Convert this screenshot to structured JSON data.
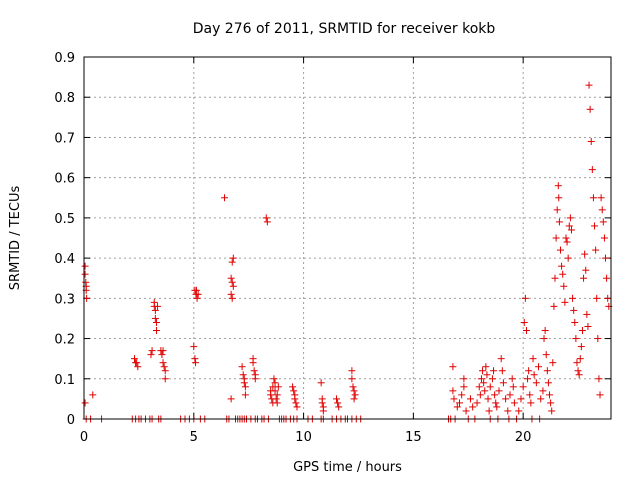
{
  "chart_data": {
    "type": "scatter",
    "title": "Day 276 of 2011, SRMTID for receiver kokb",
    "xlabel": "GPS time / hours",
    "ylabel": "SRMTID / TECUs",
    "xlim": [
      0,
      24
    ],
    "ylim": [
      0,
      0.9
    ],
    "xticks": [
      0,
      5,
      10,
      15,
      20
    ],
    "xtick_labels": [
      "0",
      "5",
      "10",
      "15",
      "20"
    ],
    "yticks": [
      0,
      0.1,
      0.2,
      0.3,
      0.4,
      0.5,
      0.6,
      0.7,
      0.8,
      0.9
    ],
    "ytick_labels": [
      "0",
      "0.1",
      "0.2",
      "0.3",
      "0.4",
      "0.5",
      "0.6",
      "0.7",
      "0.8",
      "0.9"
    ],
    "grid": true,
    "marker": "plus",
    "color": "#e00000",
    "series": [
      {
        "name": "SRMTID",
        "points": [
          [
            0.05,
            0.38
          ],
          [
            0.05,
            0.36
          ],
          [
            0.08,
            0.34
          ],
          [
            0.1,
            0.33
          ],
          [
            0.1,
            0.32
          ],
          [
            0.12,
            0.3
          ],
          [
            0.05,
            0.04
          ],
          [
            0.4,
            0.06
          ],
          [
            0.1,
            0.0
          ],
          [
            0.3,
            0.0
          ],
          [
            0.8,
            0.0
          ],
          [
            2.2,
            0.0
          ],
          [
            2.35,
            0.0
          ],
          [
            2.5,
            0.0
          ],
          [
            2.6,
            0.0
          ],
          [
            2.3,
            0.15
          ],
          [
            2.35,
            0.14
          ],
          [
            2.4,
            0.14
          ],
          [
            2.45,
            0.13
          ],
          [
            2.8,
            0.0
          ],
          [
            3.0,
            0.0
          ],
          [
            3.1,
            0.0
          ],
          [
            3.05,
            0.16
          ],
          [
            3.1,
            0.17
          ],
          [
            3.2,
            0.29
          ],
          [
            3.2,
            0.28
          ],
          [
            3.25,
            0.27
          ],
          [
            3.25,
            0.25
          ],
          [
            3.3,
            0.24
          ],
          [
            3.3,
            0.22
          ],
          [
            3.35,
            0.28
          ],
          [
            3.4,
            0.0
          ],
          [
            3.5,
            0.0
          ],
          [
            3.5,
            0.17
          ],
          [
            3.55,
            0.16
          ],
          [
            3.6,
            0.14
          ],
          [
            3.65,
            0.13
          ],
          [
            3.7,
            0.12
          ],
          [
            3.7,
            0.1
          ],
          [
            3.6,
            0.17
          ],
          [
            4.4,
            0.0
          ],
          [
            4.6,
            0.0
          ],
          [
            4.8,
            0.0
          ],
          [
            5.0,
            0.0
          ],
          [
            5.0,
            0.18
          ],
          [
            5.05,
            0.15
          ],
          [
            5.08,
            0.14
          ],
          [
            5.05,
            0.32
          ],
          [
            5.1,
            0.31
          ],
          [
            5.15,
            0.3
          ],
          [
            5.12,
            0.32
          ],
          [
            5.2,
            0.31
          ],
          [
            5.3,
            0.0
          ],
          [
            5.5,
            0.0
          ],
          [
            6.4,
            0.55
          ],
          [
            6.5,
            0.0
          ],
          [
            6.6,
            0.0
          ],
          [
            6.75,
            0.39
          ],
          [
            6.8,
            0.4
          ],
          [
            6.7,
            0.35
          ],
          [
            6.75,
            0.34
          ],
          [
            6.8,
            0.33
          ],
          [
            6.7,
            0.31
          ],
          [
            6.75,
            0.3
          ],
          [
            6.7,
            0.05
          ],
          [
            6.9,
            0.0
          ],
          [
            7.0,
            0.0
          ],
          [
            7.1,
            0.0
          ],
          [
            7.2,
            0.13
          ],
          [
            7.25,
            0.11
          ],
          [
            7.3,
            0.1
          ],
          [
            7.3,
            0.09
          ],
          [
            7.35,
            0.08
          ],
          [
            7.35,
            0.06
          ],
          [
            7.2,
            0.0
          ],
          [
            7.3,
            0.0
          ],
          [
            7.4,
            0.0
          ],
          [
            7.6,
            0.0
          ],
          [
            7.7,
            0.15
          ],
          [
            7.7,
            0.14
          ],
          [
            7.75,
            0.12
          ],
          [
            7.8,
            0.11
          ],
          [
            7.8,
            0.1
          ],
          [
            7.8,
            0.0
          ],
          [
            7.9,
            0.0
          ],
          [
            8.3,
            0.5
          ],
          [
            8.35,
            0.49
          ],
          [
            8.1,
            0.0
          ],
          [
            8.2,
            0.0
          ],
          [
            8.4,
            0.0
          ],
          [
            8.5,
            0.07
          ],
          [
            8.5,
            0.06
          ],
          [
            8.55,
            0.05
          ],
          [
            8.6,
            0.04
          ],
          [
            8.6,
            0.08
          ],
          [
            8.65,
            0.1
          ],
          [
            8.7,
            0.09
          ],
          [
            8.7,
            0.07
          ],
          [
            8.75,
            0.05
          ],
          [
            8.8,
            0.06
          ],
          [
            8.8,
            0.04
          ],
          [
            8.85,
            0.08
          ],
          [
            8.9,
            0.0
          ],
          [
            9.0,
            0.0
          ],
          [
            9.1,
            0.0
          ],
          [
            9.2,
            0.0
          ],
          [
            9.4,
            0.0
          ],
          [
            9.5,
            0.08
          ],
          [
            9.55,
            0.07
          ],
          [
            9.6,
            0.06
          ],
          [
            9.6,
            0.05
          ],
          [
            9.65,
            0.04
          ],
          [
            9.7,
            0.03
          ],
          [
            9.55,
            0.0
          ],
          [
            9.7,
            0.0
          ],
          [
            10.2,
            0.0
          ],
          [
            10.4,
            0.0
          ],
          [
            10.8,
            0.09
          ],
          [
            10.85,
            0.05
          ],
          [
            10.85,
            0.04
          ],
          [
            10.9,
            0.03
          ],
          [
            10.9,
            0.02
          ],
          [
            10.8,
            0.0
          ],
          [
            10.9,
            0.0
          ],
          [
            11.3,
            0.0
          ],
          [
            11.5,
            0.0
          ],
          [
            11.5,
            0.05
          ],
          [
            11.55,
            0.04
          ],
          [
            11.6,
            0.03
          ],
          [
            11.7,
            0.0
          ],
          [
            11.9,
            0.0
          ],
          [
            12.0,
            0.0
          ],
          [
            12.2,
            0.0
          ],
          [
            12.2,
            0.12
          ],
          [
            12.2,
            0.1
          ],
          [
            12.25,
            0.08
          ],
          [
            12.3,
            0.07
          ],
          [
            12.3,
            0.05
          ],
          [
            12.35,
            0.06
          ],
          [
            12.4,
            0.0
          ],
          [
            12.6,
            0.0
          ],
          [
            16.6,
            0.0
          ],
          [
            16.7,
            0.0
          ],
          [
            16.8,
            0.13
          ],
          [
            16.8,
            0.07
          ],
          [
            16.85,
            0.05
          ],
          [
            16.9,
            0.0
          ],
          [
            17.0,
            0.03
          ],
          [
            17.1,
            0.04
          ],
          [
            17.2,
            0.06
          ],
          [
            17.3,
            0.08
          ],
          [
            17.3,
            0.1
          ],
          [
            17.4,
            0.02
          ],
          [
            17.5,
            0.0
          ],
          [
            17.6,
            0.05
          ],
          [
            17.7,
            0.03
          ],
          [
            17.8,
            0.0
          ],
          [
            17.9,
            0.04
          ],
          [
            18.0,
            0.08
          ],
          [
            18.05,
            0.06
          ],
          [
            18.1,
            0.1
          ],
          [
            18.15,
            0.12
          ],
          [
            18.2,
            0.09
          ],
          [
            18.25,
            0.07
          ],
          [
            18.3,
            0.13
          ],
          [
            18.35,
            0.11
          ],
          [
            18.4,
            0.05
          ],
          [
            18.45,
            0.02
          ],
          [
            18.5,
            0.08
          ],
          [
            18.5,
            0.0
          ],
          [
            18.6,
            0.1
          ],
          [
            18.65,
            0.12
          ],
          [
            18.7,
            0.06
          ],
          [
            18.75,
            0.04
          ],
          [
            18.8,
            0.03
          ],
          [
            18.85,
            0.0
          ],
          [
            18.9,
            0.07
          ],
          [
            19.0,
            0.15
          ],
          [
            19.05,
            0.12
          ],
          [
            19.1,
            0.09
          ],
          [
            19.2,
            0.05
          ],
          [
            19.3,
            0.02
          ],
          [
            19.35,
            0.0
          ],
          [
            19.4,
            0.06
          ],
          [
            19.5,
            0.1
          ],
          [
            19.55,
            0.08
          ],
          [
            19.6,
            0.04
          ],
          [
            19.7,
            0.0
          ],
          [
            19.8,
            0.02
          ],
          [
            19.9,
            0.05
          ],
          [
            20.0,
            0.08
          ],
          [
            20.05,
            0.24
          ],
          [
            20.1,
            0.3
          ],
          [
            20.15,
            0.22
          ],
          [
            20.2,
            0.1
          ],
          [
            20.25,
            0.12
          ],
          [
            20.3,
            0.06
          ],
          [
            20.35,
            0.04
          ],
          [
            20.4,
            0.0
          ],
          [
            20.45,
            0.15
          ],
          [
            20.5,
            0.11
          ],
          [
            20.6,
            0.09
          ],
          [
            20.7,
            0.13
          ],
          [
            20.75,
            0.0
          ],
          [
            20.8,
            0.05
          ],
          [
            20.9,
            0.07
          ],
          [
            20.95,
            0.2
          ],
          [
            21.0,
            0.22
          ],
          [
            21.05,
            0.16
          ],
          [
            21.1,
            0.12
          ],
          [
            21.15,
            0.09
          ],
          [
            21.2,
            0.06
          ],
          [
            21.25,
            0.04
          ],
          [
            21.3,
            0.02
          ],
          [
            21.35,
            0.14
          ],
          [
            21.4,
            0.28
          ],
          [
            21.45,
            0.35
          ],
          [
            21.5,
            0.45
          ],
          [
            21.55,
            0.52
          ],
          [
            21.6,
            0.58
          ],
          [
            21.62,
            0.55
          ],
          [
            21.65,
            0.49
          ],
          [
            21.7,
            0.42
          ],
          [
            21.75,
            0.38
          ],
          [
            21.8,
            0.36
          ],
          [
            21.85,
            0.33
          ],
          [
            21.9,
            0.29
          ],
          [
            21.95,
            0.45
          ],
          [
            22.0,
            0.44
          ],
          [
            22.05,
            0.4
          ],
          [
            22.1,
            0.48
          ],
          [
            22.15,
            0.5
          ],
          [
            22.2,
            0.47
          ],
          [
            22.25,
            0.3
          ],
          [
            22.3,
            0.27
          ],
          [
            22.35,
            0.24
          ],
          [
            22.4,
            0.2
          ],
          [
            22.45,
            0.14
          ],
          [
            22.5,
            0.12
          ],
          [
            22.55,
            0.11
          ],
          [
            22.6,
            0.15
          ],
          [
            22.65,
            0.18
          ],
          [
            22.7,
            0.22
          ],
          [
            22.75,
            0.35
          ],
          [
            22.8,
            0.41
          ],
          [
            22.85,
            0.37
          ],
          [
            22.9,
            0.26
          ],
          [
            22.95,
            0.23
          ],
          [
            23.0,
            0.83
          ],
          [
            23.05,
            0.77
          ],
          [
            23.1,
            0.69
          ],
          [
            23.15,
            0.62
          ],
          [
            23.2,
            0.55
          ],
          [
            23.25,
            0.48
          ],
          [
            23.3,
            0.42
          ],
          [
            23.35,
            0.3
          ],
          [
            23.4,
            0.2
          ],
          [
            23.45,
            0.1
          ],
          [
            23.5,
            0.06
          ],
          [
            23.55,
            0.55
          ],
          [
            23.6,
            0.52
          ],
          [
            23.65,
            0.49
          ],
          [
            23.7,
            0.45
          ],
          [
            23.75,
            0.4
          ],
          [
            23.8,
            0.35
          ],
          [
            23.85,
            0.3
          ],
          [
            23.9,
            0.28
          ]
        ]
      }
    ]
  }
}
